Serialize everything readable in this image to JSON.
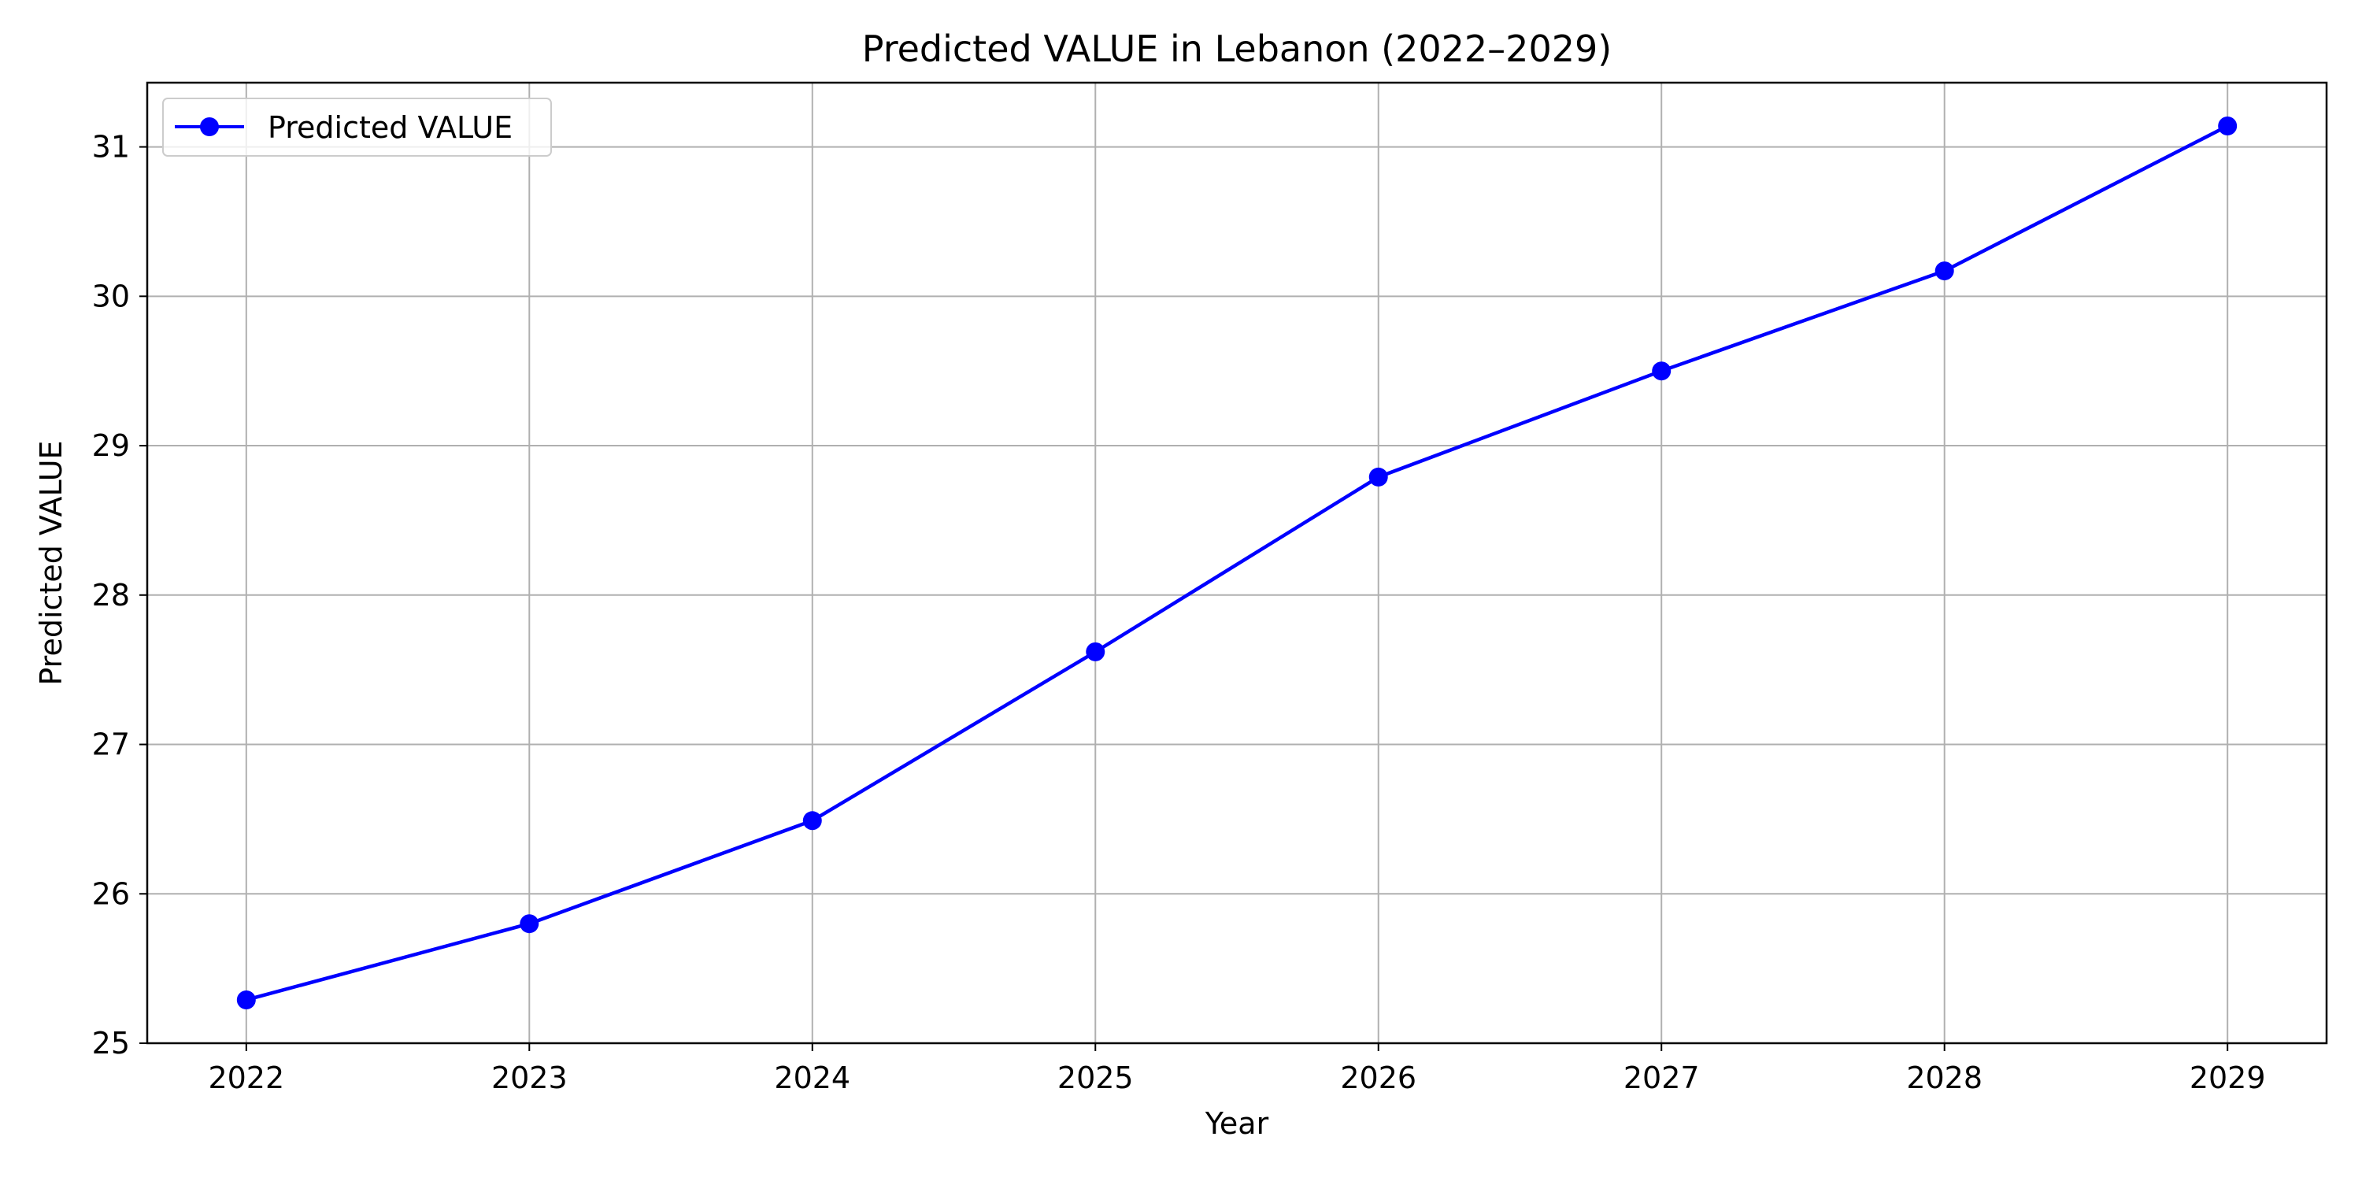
{
  "chart_data": {
    "type": "line",
    "title": "Predicted VALUE in Lebanon (2022–2029)",
    "xlabel": "Year",
    "ylabel": "Predicted VALUE",
    "x": [
      2022,
      2023,
      2024,
      2025,
      2026,
      2027,
      2028,
      2029
    ],
    "x_tick_labels": [
      "2022",
      "2023",
      "2024",
      "2025",
      "2026",
      "2027",
      "2028",
      "2029"
    ],
    "y_ticks": [
      25,
      26,
      27,
      28,
      29,
      30,
      31
    ],
    "y_tick_labels": [
      "25",
      "26",
      "27",
      "28",
      "29",
      "30",
      "31"
    ],
    "xlim": [
      2021.65,
      2029.35
    ],
    "ylim": [
      25.0,
      31.43
    ],
    "grid": true,
    "legend_position": "upper-left",
    "series": [
      {
        "name": "Predicted VALUE",
        "color": "#0000ff",
        "marker": "circle",
        "values": [
          25.29,
          25.8,
          26.49,
          27.62,
          28.79,
          29.5,
          30.17,
          31.14
        ]
      }
    ]
  }
}
